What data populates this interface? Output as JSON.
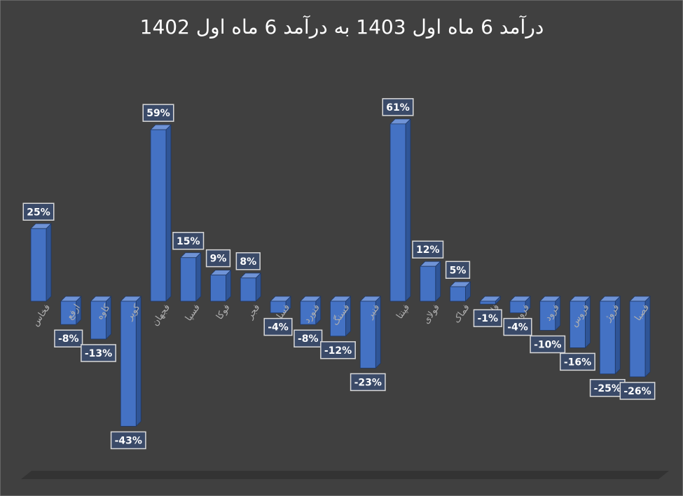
{
  "chart_data": {
    "type": "bar3d",
    "title": "درآمد 6 ماه اول 1403 به درآمد 6 ماه اول 1402",
    "categories": [
      "فخاس",
      "ارفع",
      "کاوه",
      "کویر",
      "فجهان",
      "فسپا",
      "فوکا",
      "فجر",
      "فسازان",
      "فنورد",
      "فسنگ",
      "فنیر",
      "فپنتا",
      "فولای",
      "فماک",
      "فلوله",
      "فروسیل",
      "فرود",
      "فروس",
      "فروژ",
      "فصبا"
    ],
    "values": [
      25,
      -8,
      -13,
      -43,
      59,
      15,
      9,
      8,
      -4,
      -8,
      -12,
      -23,
      61,
      12,
      5,
      -1,
      -4,
      -10,
      -16,
      -25,
      -26
    ],
    "value_labels": [
      "25%",
      "-8%",
      "-13%",
      "-43%",
      "59%",
      "15%",
      "9%",
      "8%",
      "-4%",
      "-8%",
      "-12%",
      "-23%",
      "61%",
      "12%",
      "5%",
      "-1%",
      "-4%",
      "-10%",
      "-16%",
      "-25%",
      "-26%"
    ],
    "color": "#4472c4"
  }
}
